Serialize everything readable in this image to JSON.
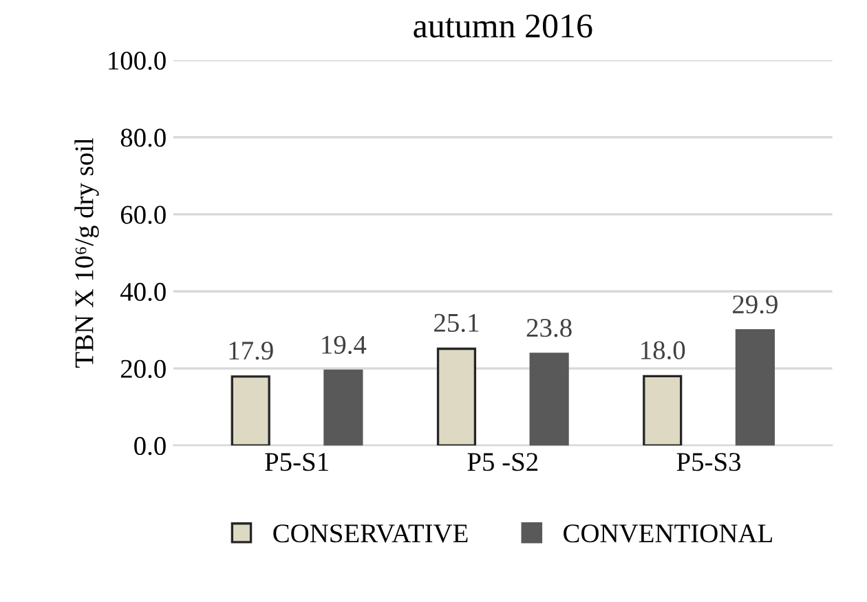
{
  "chart_data": {
    "type": "bar",
    "title": "autumn 2016",
    "ylabel": "TBN X 10⁶/g dry soil",
    "categories": [
      "P5-S1",
      "P5 -S2",
      "P5-S3"
    ],
    "series": [
      {
        "name": "CONSERVATIVE",
        "color": "#ddd9c3",
        "values": [
          17.9,
          25.1,
          18.0
        ],
        "value_labels": [
          "17.9",
          "25.1",
          "18.0"
        ]
      },
      {
        "name": "CONVENTIONAL",
        "color": "#595959",
        "values": [
          19.4,
          23.8,
          29.9
        ],
        "value_labels": [
          "19.4",
          "23.8",
          "29.9"
        ]
      }
    ],
    "ylim": [
      0,
      100
    ],
    "yticks": [
      {
        "value": 0,
        "label": "0.0"
      },
      {
        "value": 20,
        "label": "20.0"
      },
      {
        "value": 40,
        "label": "40.0"
      },
      {
        "value": 60,
        "label": "60.0"
      },
      {
        "value": 80,
        "label": "80.0"
      },
      {
        "value": 100,
        "label": "100.0"
      }
    ],
    "grid": "y",
    "legend": "bottom"
  }
}
